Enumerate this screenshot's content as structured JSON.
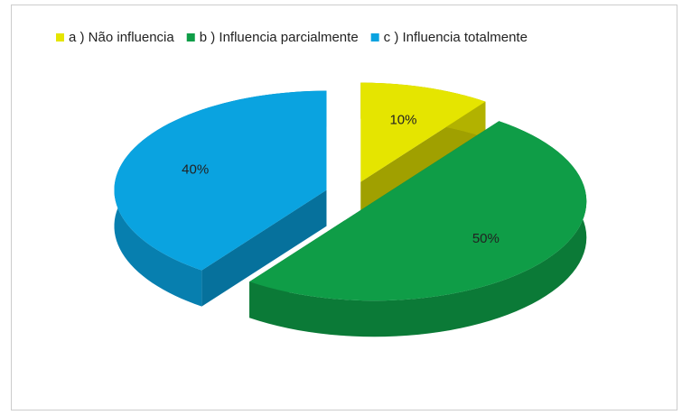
{
  "chart_data": {
    "type": "pie",
    "categories": [
      "a ) Não influencia",
      "b ) Influencia parcialmente",
      "c ) Influencia totalmente"
    ],
    "values": [
      10,
      50,
      40
    ],
    "value_labels": [
      "10%",
      "50%",
      "40%"
    ],
    "colors": [
      "#e5e500",
      "#0f9d47",
      "#0aa3e0"
    ],
    "legend": "top"
  }
}
